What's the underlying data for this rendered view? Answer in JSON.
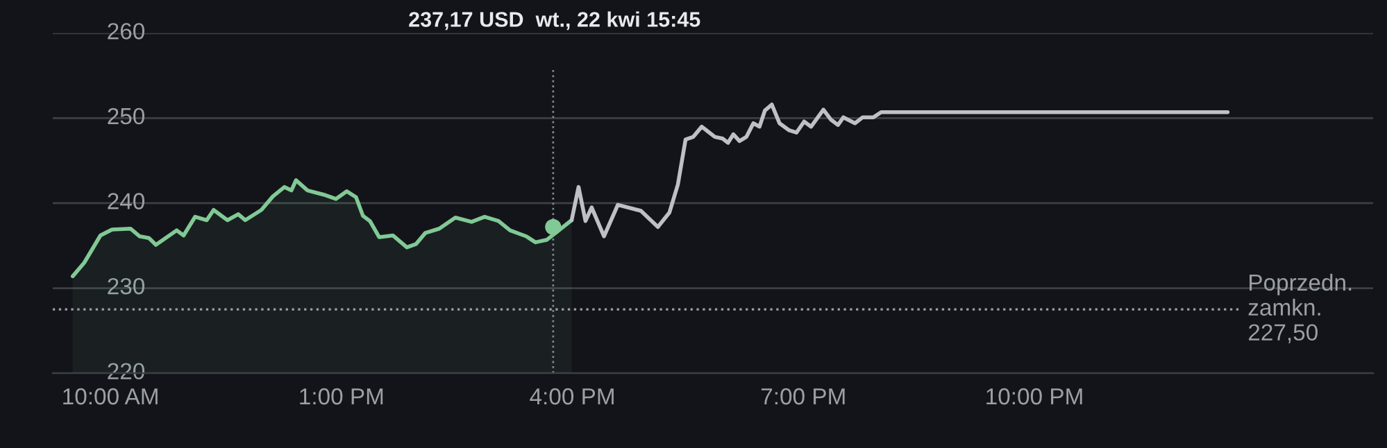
{
  "chart_data": {
    "type": "line",
    "series": [
      {
        "type": "area",
        "color": "#81c995",
        "x": [
          9.51,
          9.66,
          9.87,
          10.02,
          10.26,
          10.38,
          10.5,
          10.59,
          10.86,
          10.95,
          11.1,
          11.25,
          11.34,
          11.52,
          11.66,
          11.75,
          11.96,
          12.11,
          12.26,
          12.35,
          12.41,
          12.56,
          12.77,
          12.93,
          13.07,
          13.19,
          13.28,
          13.37,
          13.49,
          13.67,
          13.85,
          13.97,
          14.09,
          14.27,
          14.48,
          14.69,
          14.86,
          15.04,
          15.19,
          15.4,
          15.52,
          15.67,
          15.99
        ],
        "values": [
          231.4,
          233.0,
          236.2,
          236.9,
          237.0,
          236.1,
          235.9,
          235.1,
          236.8,
          236.2,
          238.4,
          238.0,
          239.2,
          238.0,
          238.7,
          238.0,
          239.2,
          240.8,
          241.9,
          241.5,
          242.7,
          241.5,
          241.0,
          240.5,
          241.4,
          240.7,
          238.5,
          237.9,
          236.0,
          236.2,
          234.8,
          235.2,
          236.5,
          237.0,
          238.3,
          237.8,
          238.4,
          237.9,
          236.8,
          236.1,
          235.4,
          235.7,
          238.0
        ]
      },
      {
        "type": "scatter",
        "color": "#81c995",
        "x": [
          15.75
        ],
        "values": [
          237.2
        ]
      },
      {
        "color": "#bdc1c6",
        "x": [
          15.99,
          16.08,
          16.17,
          16.25,
          16.41,
          16.59,
          16.89,
          17.11,
          17.26,
          17.37,
          17.47,
          17.57,
          17.68,
          17.85,
          17.95,
          18.02,
          18.09,
          18.17,
          18.26,
          18.35,
          18.43,
          18.5,
          18.59,
          18.69,
          18.81,
          18.91,
          19.01,
          19.1,
          19.26,
          19.36,
          19.45,
          19.52,
          19.67,
          19.77,
          19.91,
          20.01,
          24.51
        ],
        "values": [
          238.0,
          241.9,
          237.9,
          239.5,
          236.1,
          239.8,
          239.1,
          237.2,
          238.9,
          242.2,
          247.5,
          247.8,
          249.0,
          247.8,
          247.6,
          247.1,
          248.1,
          247.3,
          247.8,
          249.4,
          249.0,
          250.9,
          251.6,
          249.4,
          248.6,
          248.3,
          249.6,
          249.0,
          251.0,
          249.8,
          249.2,
          250.1,
          249.4,
          250.1,
          250.1,
          250.7,
          250.7
        ]
      }
    ],
    "xlim": [
      9.25,
      26.4
    ],
    "xticks": [
      {
        "value": 10,
        "label": "10:00 AM"
      },
      {
        "value": 13,
        "label": "1:00 PM"
      },
      {
        "value": 16,
        "label": "4:00 PM"
      },
      {
        "value": 19,
        "label": "7:00 PM"
      },
      {
        "value": 22,
        "label": "10:00 PM"
      }
    ],
    "ylim": [
      220,
      260
    ],
    "yticks": [
      220,
      230,
      240,
      250,
      260
    ],
    "grid": "y",
    "legend": false,
    "ref_lines": [
      {
        "axis": "y",
        "value": 227.5,
        "label": "Poprzedn.\nzamkn.\n227,50",
        "color": "#9aa0a6",
        "line_style": "dotted"
      },
      {
        "axis": "x",
        "value": 15.75,
        "color": "#80868b",
        "line_style": "dotted"
      }
    ],
    "annotations": [
      "237,17 USD  wt., 22 kwi 15:45"
    ]
  }
}
